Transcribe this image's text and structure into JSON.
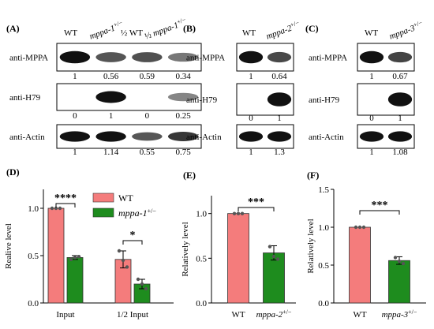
{
  "blots": {
    "A": {
      "panel": "(A)",
      "lanes": [
        {
          "pre": "",
          "gene": "WT",
          "gene_italic": false,
          "sup": ""
        },
        {
          "pre": "",
          "gene": "mppa-1",
          "gene_italic": true,
          "sup": "+/−"
        },
        {
          "pre": "½ ",
          "gene": "WT",
          "gene_italic": false,
          "sup": ""
        },
        {
          "pre": "½ ",
          "gene": "mppa-1",
          "gene_italic": true,
          "sup": "+/−"
        }
      ],
      "rows": [
        {
          "label": "anti-MPPA",
          "values": [
            "1",
            "0.56",
            "0.59",
            "0.34"
          ]
        },
        {
          "label": "anti-H79",
          "values": [
            "0",
            "1",
            "0",
            "0.25"
          ]
        },
        {
          "label": "anti-Actin",
          "values": [
            "1",
            "1.14",
            "0.55",
            "0.75"
          ]
        }
      ]
    },
    "B": {
      "panel": "(B)",
      "lanes": [
        {
          "pre": "",
          "gene": "WT",
          "gene_italic": false,
          "sup": ""
        },
        {
          "pre": "",
          "gene": "mppa-2",
          "gene_italic": true,
          "sup": "+/−"
        }
      ],
      "rows": [
        {
          "label": "anti-MPPA",
          "values": [
            "1",
            "0.64"
          ]
        },
        {
          "label": "anti-H79",
          "values": [
            "0",
            "1"
          ]
        },
        {
          "label": "anti-Actin",
          "values": [
            "1",
            "1.3"
          ]
        }
      ]
    },
    "C": {
      "panel": "(C)",
      "lanes": [
        {
          "pre": "",
          "gene": "WT",
          "gene_italic": false,
          "sup": ""
        },
        {
          "pre": "",
          "gene": "mppa-3",
          "gene_italic": true,
          "sup": "+/−"
        }
      ],
      "rows": [
        {
          "label": "anti-MPPA",
          "values": [
            "1",
            "0.67"
          ]
        },
        {
          "label": "anti-H79",
          "values": [
            "0",
            "1"
          ]
        },
        {
          "label": "anti-Actin",
          "values": [
            "1",
            "1.08"
          ]
        }
      ]
    }
  },
  "chart_data": [
    {
      "panel": "(D)",
      "type": "bar",
      "ylabel": "Realive level",
      "ylim": [
        0,
        1.2
      ],
      "yticks": [
        "0.0",
        "0.5",
        "1.0"
      ],
      "categories": [
        "Input",
        "1/2 Input"
      ],
      "series": [
        {
          "name": "WT",
          "name_italic": false,
          "sup": "",
          "color": "#f47c7c",
          "values": [
            1.0,
            0.46
          ],
          "err": [
            0,
            0.09
          ],
          "points": [
            [
              1.0,
              1.0,
              1.0
            ],
            [
              0.55,
              0.45,
              0.38
            ]
          ]
        },
        {
          "name": "mppa-1",
          "name_italic": true,
          "sup": "+/−",
          "color": "#1e8c1e",
          "values": [
            0.48,
            0.2
          ],
          "err": [
            0.02,
            0.05
          ],
          "points": [
            [
              0.46,
              0.48,
              0.49
            ],
            [
              0.25,
              0.2,
              0.15
            ]
          ]
        }
      ],
      "significance": [
        {
          "category": 0,
          "label": "****"
        },
        {
          "category": 1,
          "label": "*"
        }
      ],
      "legend": "top-right"
    },
    {
      "panel": "(E)",
      "type": "bar",
      "ylabel": "Relatively level",
      "ylim": [
        0,
        1.2
      ],
      "yticks": [
        "0.0",
        "0.5",
        "1.0"
      ],
      "categories": [
        {
          "name": "WT",
          "italic": false,
          "sup": ""
        },
        {
          "name": "mppa-2",
          "italic": true,
          "sup": "+/−"
        }
      ],
      "values": [
        1.0,
        0.56
      ],
      "err": [
        0,
        0.08
      ],
      "colors": [
        "#f47c7c",
        "#1e8c1e"
      ],
      "points": [
        [
          1.0,
          1.0,
          1.0
        ],
        [
          0.63,
          0.52,
          0.49
        ]
      ],
      "significance": [
        {
          "label": "***"
        }
      ]
    },
    {
      "panel": "(F)",
      "type": "bar",
      "ylabel": "Relatively level",
      "ylim": [
        0,
        1.5
      ],
      "yticks": [
        "0.0",
        "0.5",
        "1.0",
        "1.5"
      ],
      "categories": [
        {
          "name": "WT",
          "italic": false,
          "sup": ""
        },
        {
          "name": "mppa-3",
          "italic": true,
          "sup": "+/−"
        }
      ],
      "values": [
        1.0,
        0.56
      ],
      "err": [
        0,
        0.05
      ],
      "colors": [
        "#f47c7c",
        "#1e8c1e"
      ],
      "points": [
        [
          1.0,
          1.0,
          1.0
        ],
        [
          0.6,
          0.55,
          0.52
        ]
      ],
      "significance": [
        {
          "label": "***"
        }
      ]
    }
  ]
}
